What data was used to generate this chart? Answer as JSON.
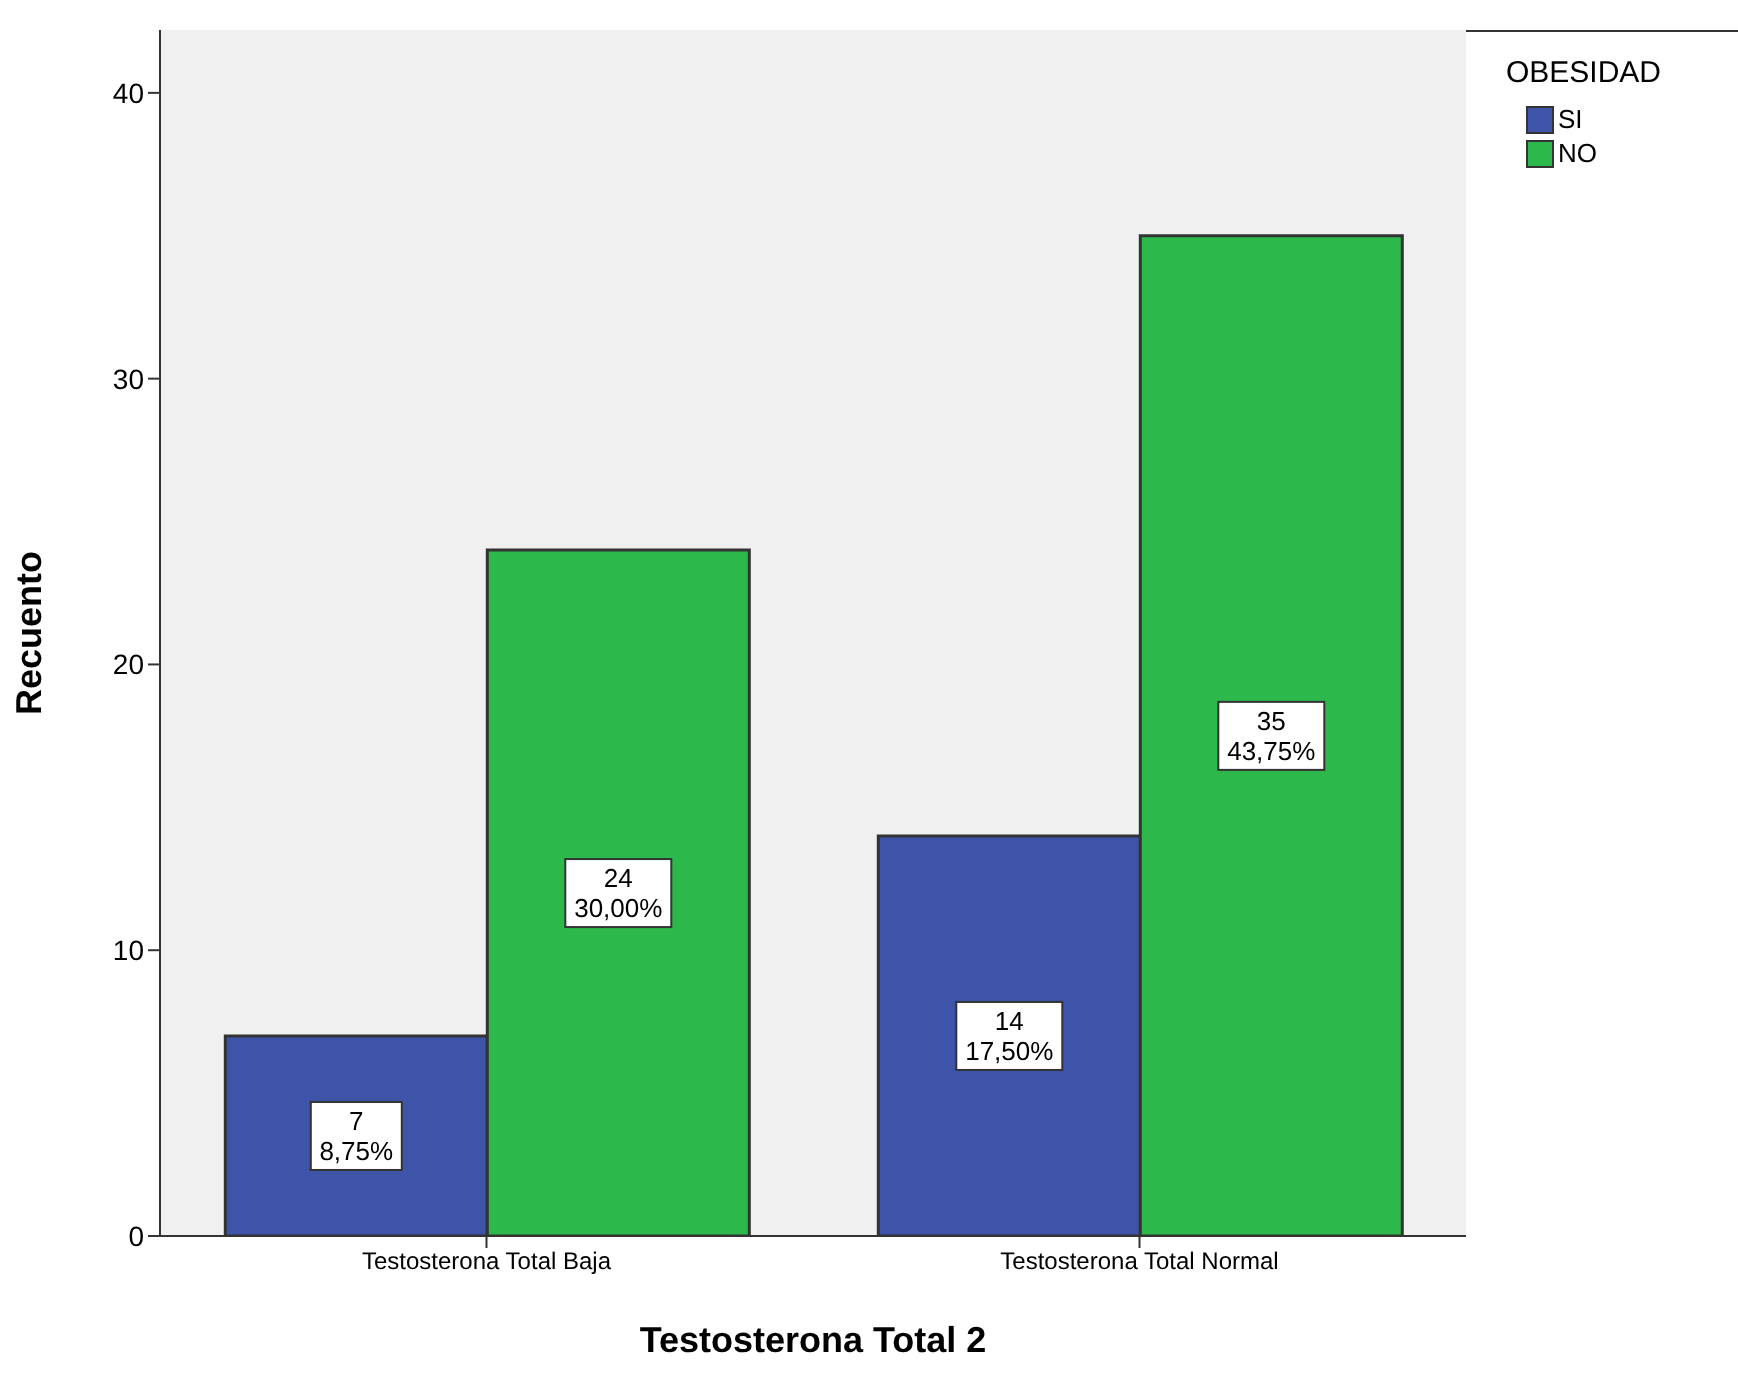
{
  "chart_data": {
    "type": "bar",
    "xlabel": "Testosterona Total 2",
    "ylabel": "Recuento",
    "legend_title": "OBESIDAD",
    "legend": "top right",
    "categories": [
      "Testosterona Total Baja",
      "Testosterona Total Normal"
    ],
    "series": [
      {
        "name": "SI",
        "color": "#3d54a8",
        "values": [
          7,
          14
        ],
        "value_labels": [
          "7\n8,75%",
          "14\n17,50%"
        ]
      },
      {
        "name": "NO",
        "color": "#2db84b",
        "values": [
          24,
          35
        ],
        "value_labels": [
          "24\n30,00%",
          "35\n43,75%"
        ]
      }
    ],
    "ylim": [
      0,
      42.2
    ],
    "yticks": [
      0,
      10,
      20,
      30,
      40
    ],
    "grid": false
  }
}
